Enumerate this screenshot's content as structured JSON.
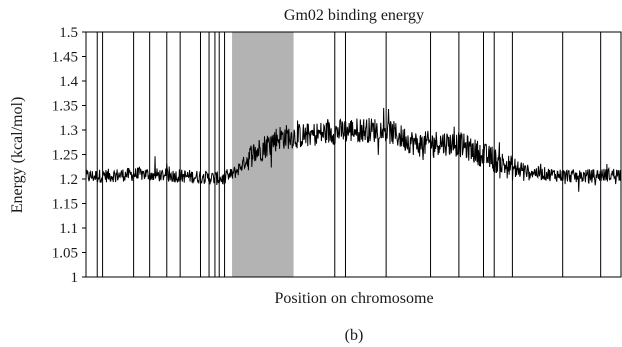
{
  "chart_data": {
    "type": "line",
    "title": "Gm02 binding energy",
    "xlabel": "Position on chromosome",
    "ylabel": "Energy (kcal/mol)",
    "panel_label": "(b)",
    "ylim": [
      1,
      1.5
    ],
    "xlim": [
      0,
      1
    ],
    "yticks": [
      "1",
      "1.05",
      "1.1",
      "1.15",
      "1.2",
      "1.25",
      "1.3",
      "1.35",
      "1.4",
      "1.45",
      "1.5"
    ],
    "x_ticks_labeled": false,
    "grid": false,
    "series": [
      {
        "baseline_profile": {
          "x": [
            0,
            0.1,
            0.2,
            0.26,
            0.28,
            0.31,
            0.36,
            0.42,
            0.5,
            0.56,
            0.62,
            0.66,
            0.7,
            0.76,
            0.8,
            0.86,
            0.92,
            1.0
          ],
          "y": [
            1.205,
            1.21,
            1.205,
            1.2,
            1.215,
            1.25,
            1.285,
            1.29,
            1.3,
            1.3,
            1.27,
            1.275,
            1.27,
            1.24,
            1.22,
            1.21,
            1.205,
            1.21
          ]
        },
        "color": "#000000"
      }
    ],
    "highlight_region": {
      "x_start": 0.273,
      "x_end": 0.388,
      "color": "#b3b3b3"
    },
    "vertical_lines_x": [
      0.021,
      0.031,
      0.089,
      0.119,
      0.151,
      0.176,
      0.214,
      0.23,
      0.241,
      0.249,
      0.259,
      0.465,
      0.485,
      0.561,
      0.644,
      0.697,
      0.743,
      0.763,
      0.797,
      0.891,
      0.962
    ]
  }
}
